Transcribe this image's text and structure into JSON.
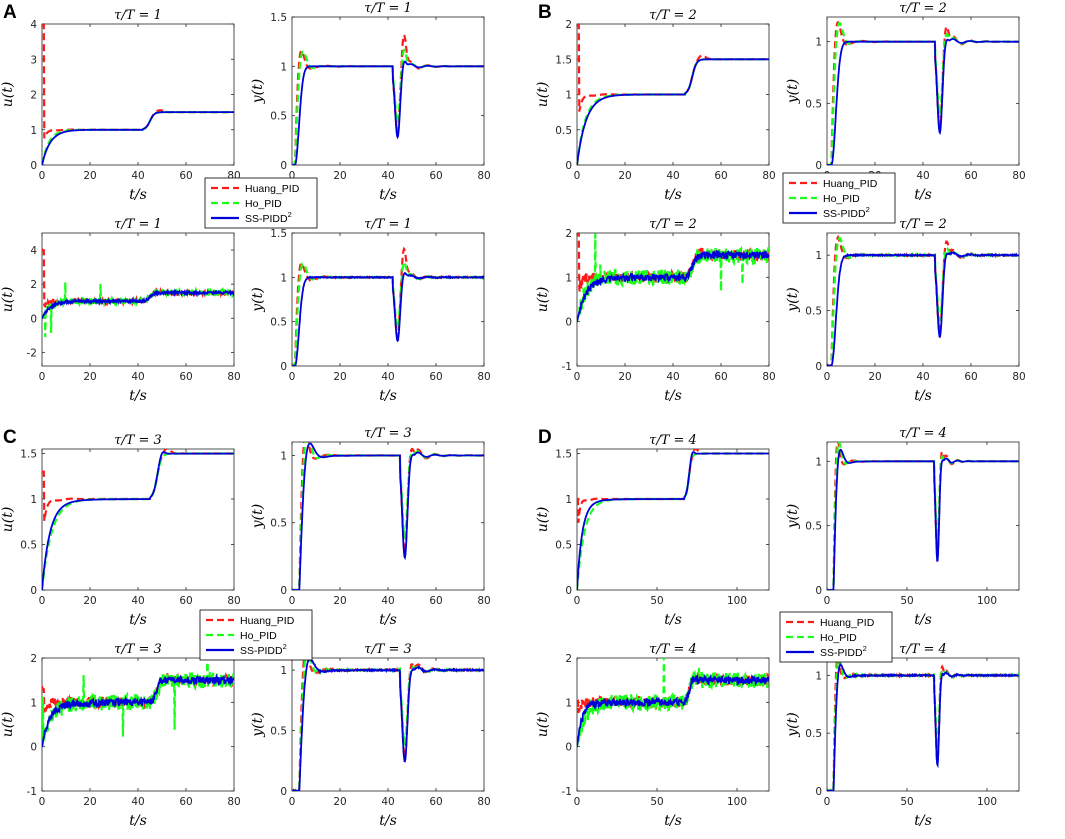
{
  "colors": {
    "huang": "#ff1a1a",
    "ho": "#1aff1a",
    "ss": "#0000dd"
  },
  "legend_items": [
    {
      "key": "huang",
      "label": "Huang_PID",
      "sup": ""
    },
    {
      "key": "ho",
      "label": "Ho_PID",
      "sup": ""
    },
    {
      "key": "ss",
      "label": "SS-PIDD",
      "sup": "2"
    }
  ],
  "chart_data": [
    {
      "panel": "A",
      "tau": 1,
      "xmax": 80,
      "xticks": [
        0,
        20,
        40,
        60,
        80
      ],
      "disturbance_t": 42,
      "subplots": [
        {
          "type": "line",
          "kind": "u",
          "noise": false,
          "title": "τ/T = 1",
          "xlabel": "t/s",
          "ylabel": "u(t)",
          "ylim": [
            0,
            4
          ],
          "yticks": [
            0,
            1,
            2,
            3,
            4
          ],
          "spike": 4.0
        },
        {
          "type": "line",
          "kind": "y",
          "noise": false,
          "title": "τ/T = 1",
          "xlabel": "t/s",
          "ylabel": "y(t)",
          "ylim": [
            0,
            1.5
          ],
          "yticks": [
            0,
            0.5,
            1,
            1.5
          ],
          "overshoot_peak": 1.35
        },
        {
          "type": "line",
          "kind": "u",
          "noise": true,
          "title": "τ/T = 1",
          "xlabel": "t/s",
          "ylabel": "u(t)",
          "ylim": [
            -2.8,
            5
          ],
          "yticks": [
            -2,
            0,
            2,
            4
          ],
          "spike": 4.0
        },
        {
          "type": "line",
          "kind": "y",
          "noise": true,
          "title": "τ/T = 1",
          "xlabel": "t/s",
          "ylabel": "y(t)",
          "ylim": [
            0,
            1.5
          ],
          "yticks": [
            0,
            0.5,
            1,
            1.5
          ],
          "overshoot_peak": 1.35
        }
      ]
    },
    {
      "panel": "B",
      "tau": 2,
      "xmax": 80,
      "xticks": [
        0,
        20,
        40,
        60,
        80
      ],
      "disturbance_t": 45,
      "subplots": [
        {
          "type": "line",
          "kind": "u",
          "noise": false,
          "title": "τ/T = 2",
          "xlabel": "t/s",
          "ylabel": "u(t)",
          "ylim": [
            0,
            2
          ],
          "yticks": [
            0,
            0.5,
            1,
            1.5,
            2
          ],
          "spike": 2.0
        },
        {
          "type": "line",
          "kind": "y",
          "noise": false,
          "title": "τ/T = 2",
          "xlabel": "t/s",
          "ylabel": "y(t)",
          "ylim": [
            0,
            1.2
          ],
          "yticks": [
            0,
            0.5,
            1
          ],
          "overshoot_peak": 1.15
        },
        {
          "type": "line",
          "kind": "u",
          "noise": true,
          "title": "τ/T = 2",
          "xlabel": "t/s",
          "ylabel": "u(t)",
          "ylim": [
            -1,
            2
          ],
          "yticks": [
            -1,
            0,
            1,
            2
          ],
          "spike": 2.0
        },
        {
          "type": "line",
          "kind": "y",
          "noise": true,
          "title": "τ/T = 2",
          "xlabel": "t/s",
          "ylabel": "y(t)",
          "ylim": [
            0,
            1.2
          ],
          "yticks": [
            0,
            0.5,
            1
          ],
          "overshoot_peak": 1.15
        }
      ]
    },
    {
      "panel": "C",
      "tau": 3,
      "xmax": 80,
      "xticks": [
        0,
        20,
        40,
        60,
        80
      ],
      "disturbance_t": 45,
      "subplots": [
        {
          "type": "line",
          "kind": "u",
          "noise": false,
          "title": "τ/T = 3",
          "xlabel": "t/s",
          "ylabel": "u(t)",
          "ylim": [
            0,
            1.55
          ],
          "yticks": [
            0,
            0.5,
            1,
            1.5
          ],
          "spike": 1.3
        },
        {
          "type": "line",
          "kind": "y",
          "noise": false,
          "title": "τ/T = 3",
          "xlabel": "t/s",
          "ylabel": "y(t)",
          "ylim": [
            0,
            1.1
          ],
          "yticks": [
            0,
            0.5,
            1
          ],
          "overshoot_peak": 1.07
        },
        {
          "type": "line",
          "kind": "u",
          "noise": true,
          "title": "τ/T = 3",
          "xlabel": "t/s",
          "ylabel": "u(t)",
          "ylim": [
            -1,
            2
          ],
          "yticks": [
            -1,
            0,
            1,
            2
          ],
          "spike": 1.3
        },
        {
          "type": "line",
          "kind": "y",
          "noise": true,
          "title": "τ/T = 3",
          "xlabel": "t/s",
          "ylabel": "y(t)",
          "ylim": [
            0,
            1.1
          ],
          "yticks": [
            0,
            0.5,
            1
          ],
          "overshoot_peak": 1.07
        }
      ]
    },
    {
      "panel": "D",
      "tau": 4,
      "xmax": 120,
      "xticks": [
        0,
        50,
        100
      ],
      "disturbance_t": 67,
      "subplots": [
        {
          "type": "line",
          "kind": "u",
          "noise": false,
          "title": "τ/T = 4",
          "xlabel": "t/s",
          "ylabel": "u(t)",
          "ylim": [
            0,
            1.55
          ],
          "yticks": [
            0,
            0.5,
            1,
            1.5
          ],
          "spike": 1.0
        },
        {
          "type": "line",
          "kind": "y",
          "noise": false,
          "title": "τ/T = 4",
          "xlabel": "t/s",
          "ylabel": "y(t)",
          "ylim": [
            0,
            1.15
          ],
          "yticks": [
            0,
            0.5,
            1
          ],
          "overshoot_peak": 1.1
        },
        {
          "type": "line",
          "kind": "u",
          "noise": true,
          "title": "τ/T = 4",
          "xlabel": "t/s",
          "ylabel": "u(t)",
          "ylim": [
            -1,
            2
          ],
          "yticks": [
            -1,
            0,
            1,
            2
          ],
          "spike": 1.0
        },
        {
          "type": "line",
          "kind": "y",
          "noise": true,
          "title": "τ/T = 4",
          "xlabel": "t/s",
          "ylabel": "y(t)",
          "ylim": [
            0,
            1.15
          ],
          "yticks": [
            0,
            0.5,
            1
          ],
          "overshoot_peak": 1.1
        }
      ]
    }
  ]
}
